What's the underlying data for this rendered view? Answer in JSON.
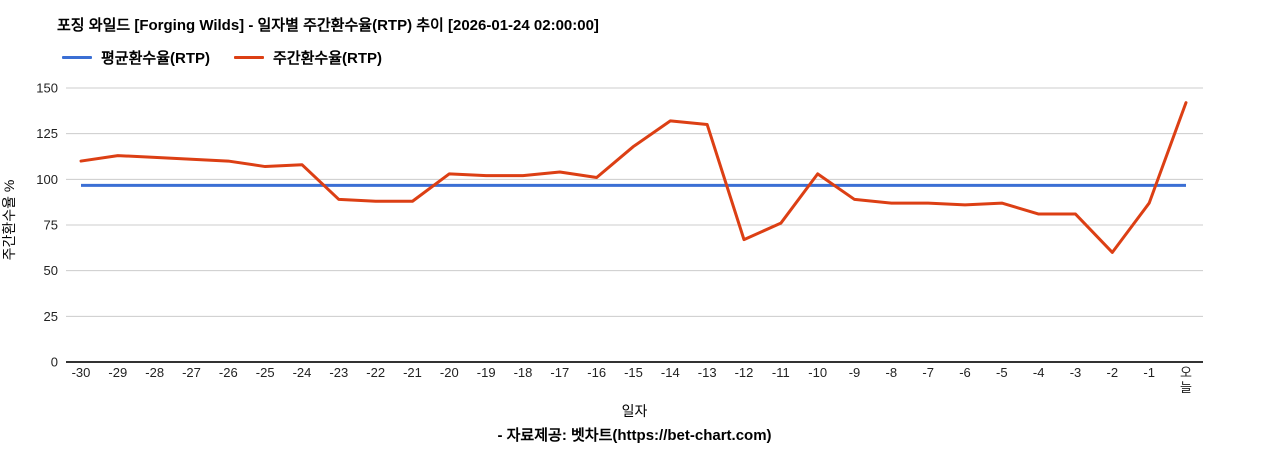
{
  "footer": {
    "source": "- 자료제공: 벳차트(https://bet-chart.com)"
  },
  "chart_data": {
    "type": "line",
    "title": "포징 와일드 [Forging Wilds] - 일자별 주간환수율(RTP) 추이 [2026-01-24 02:00:00]",
    "xlabel": "일자",
    "ylabel": "주간환수율 %",
    "x_categories": [
      "-30",
      "-29",
      "-28",
      "-27",
      "-26",
      "-25",
      "-24",
      "-23",
      "-22",
      "-21",
      "-20",
      "-19",
      "-18",
      "-17",
      "-16",
      "-15",
      "-14",
      "-13",
      "-12",
      "-11",
      "-10",
      "-9",
      "-8",
      "-7",
      "-6",
      "-5",
      "-4",
      "-3",
      "-2",
      "-1",
      "오늘"
    ],
    "series": [
      {
        "name": "평균환수율(RTP)",
        "color": "#3b6fd4",
        "constant_value": 96.7
      },
      {
        "name": "주간환수율(RTP)",
        "color": "#dc3f14",
        "values": [
          110,
          113,
          112,
          111,
          110,
          107,
          108,
          89,
          88,
          88,
          103,
          102,
          102,
          104,
          101,
          118,
          132,
          130,
          67,
          76,
          103,
          89,
          87,
          87,
          86,
          87,
          81,
          81,
          60,
          87,
          142
        ]
      }
    ],
    "y_ticks": [
      0,
      25,
      50,
      75,
      100,
      125,
      150
    ],
    "ylim": [
      0,
      150
    ],
    "grid": "horizontal",
    "legend_position": "top-left",
    "colors": {
      "grid": "#cccccc",
      "axis": "#333333",
      "text": "#222222"
    }
  }
}
